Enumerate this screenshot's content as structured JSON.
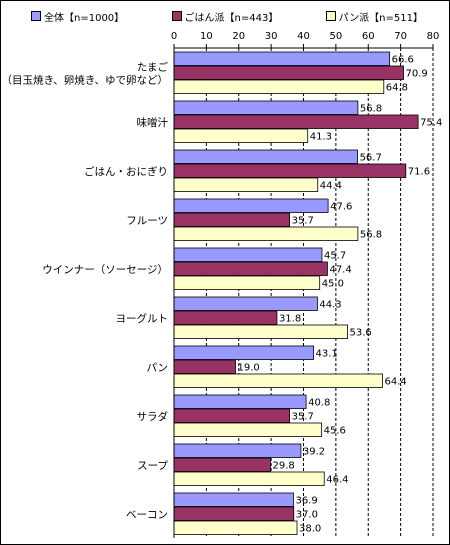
{
  "chart_data": {
    "type": "bar",
    "orientation": "horizontal",
    "xlim": [
      0,
      80
    ],
    "ticks": [
      "0",
      "10",
      "20",
      "30",
      "40",
      "50",
      "60",
      "70",
      "80"
    ],
    "grid": "vertical dashed",
    "legend_position": "top",
    "categories": [
      "たまご\n（目玉焼き、卵焼き、ゆで卵など）",
      "味噌汁",
      "ごはん・おにぎり",
      "フルーツ",
      "ウインナー（ソーセージ）",
      "ヨーグルト",
      "パン",
      "サラダ",
      "スープ",
      "ベーコン"
    ],
    "series": [
      {
        "name": "全体【n=1000】",
        "color": "#9999ff",
        "values": [
          66.6,
          56.8,
          56.7,
          47.6,
          45.7,
          44.3,
          43.1,
          40.8,
          39.2,
          36.9
        ],
        "labels": [
          "66.6",
          "56.8",
          "56.7",
          "47.6",
          "45.7",
          "44.3",
          "43.1",
          "40.8",
          "39.2",
          "36.9"
        ]
      },
      {
        "name": "ごはん派【n=443】",
        "color": "#993366",
        "values": [
          70.9,
          75.4,
          71.6,
          35.7,
          47.4,
          31.8,
          19.0,
          35.7,
          29.8,
          37.0
        ],
        "labels": [
          "70.9",
          "75.4",
          "71.6",
          "35.7",
          "47.4",
          "31.8",
          "19.0",
          "35.7",
          "29.8",
          "37.0"
        ]
      },
      {
        "name": "パン派【n=511】",
        "color": "#ffffcc",
        "values": [
          64.8,
          41.3,
          44.4,
          56.8,
          45.0,
          53.6,
          64.4,
          45.6,
          46.4,
          38.0
        ],
        "labels": [
          "64.8",
          "41.3",
          "44.4",
          "56.8",
          "45.0",
          "53.6",
          "64.4",
          "45.6",
          "46.4",
          "38.0"
        ]
      }
    ]
  }
}
